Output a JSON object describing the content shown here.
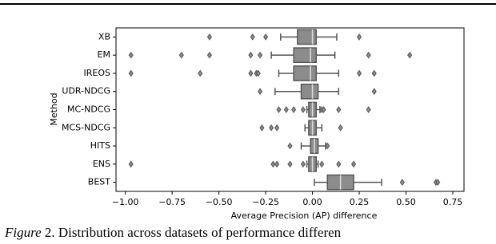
{
  "chart_data": {
    "type": "box",
    "x_label": "Average Precision (AP) difference",
    "y_label": "Method",
    "categories": [
      "XB",
      "EM",
      "IREOS",
      "UDR-NDCG",
      "MC-NDCG",
      "MCS-NDCG",
      "HITS",
      "ENS",
      "BEST"
    ],
    "stats": [
      {
        "whisker_low": -0.17,
        "q1": -0.08,
        "median": 0.0,
        "q3": 0.02,
        "whisker_high": 0.13,
        "outliers": [
          -0.55,
          -0.32,
          -0.25,
          0.25
        ]
      },
      {
        "whisker_low": -0.22,
        "q1": -0.1,
        "median": -0.01,
        "q3": 0.02,
        "whisker_high": 0.12,
        "outliers": [
          -0.97,
          -0.7,
          -0.55,
          -0.33,
          -0.28,
          0.3,
          0.52
        ]
      },
      {
        "whisker_low": -0.18,
        "q1": -0.1,
        "median": -0.01,
        "q3": 0.02,
        "whisker_high": 0.14,
        "outliers": [
          -0.97,
          -0.6,
          -0.33,
          -0.3,
          -0.29,
          0.25,
          0.33
        ]
      },
      {
        "whisker_low": -0.2,
        "q1": -0.06,
        "median": 0.0,
        "q3": 0.03,
        "whisker_high": 0.14,
        "outliers": [
          -0.28,
          0.33
        ]
      },
      {
        "whisker_low": -0.03,
        "q1": -0.02,
        "median": 0.0,
        "q3": 0.02,
        "whisker_high": 0.04,
        "outliers": [
          -0.18,
          -0.14,
          -0.1,
          -0.05,
          0.05,
          0.06,
          0.14,
          0.3
        ]
      },
      {
        "whisker_low": -0.04,
        "q1": -0.02,
        "median": 0.0,
        "q3": 0.02,
        "whisker_high": 0.05,
        "outliers": [
          -0.27,
          -0.22,
          -0.19,
          0.15
        ]
      },
      {
        "whisker_low": -0.06,
        "q1": -0.01,
        "median": 0.01,
        "q3": 0.03,
        "whisker_high": 0.07,
        "outliers": [
          -0.12,
          0.08
        ]
      },
      {
        "whisker_low": -0.03,
        "q1": -0.02,
        "median": 0.0,
        "q3": 0.02,
        "whisker_high": 0.03,
        "outliers": [
          -0.97,
          -0.21,
          -0.19,
          -0.12,
          -0.05,
          0.05,
          0.14,
          0.22
        ]
      },
      {
        "whisker_low": 0.01,
        "q1": 0.08,
        "median": 0.15,
        "q3": 0.22,
        "whisker_high": 0.37,
        "outliers": [
          0.48,
          0.66,
          0.67
        ]
      }
    ],
    "color": "#8c8c8c",
    "edge_color": "#555555",
    "xlim": [
      -1.05,
      0.81
    ],
    "xticks": [
      {
        "value": -1,
        "label": "−1.00"
      },
      {
        "value": -0.75,
        "label": "−0.75"
      },
      {
        "value": -0.5,
        "label": "−0.50"
      },
      {
        "value": -0.25,
        "label": "−0.25"
      },
      {
        "value": 0,
        "label": "0.00"
      },
      {
        "value": 0.25,
        "label": "0.25"
      },
      {
        "value": 0.5,
        "label": "0.50"
      },
      {
        "value": 0.75,
        "label": "0.75"
      }
    ],
    "grid": false
  },
  "caption": {
    "label": "Figure",
    "text": " 2. Distribution across datasets of performance differen"
  }
}
